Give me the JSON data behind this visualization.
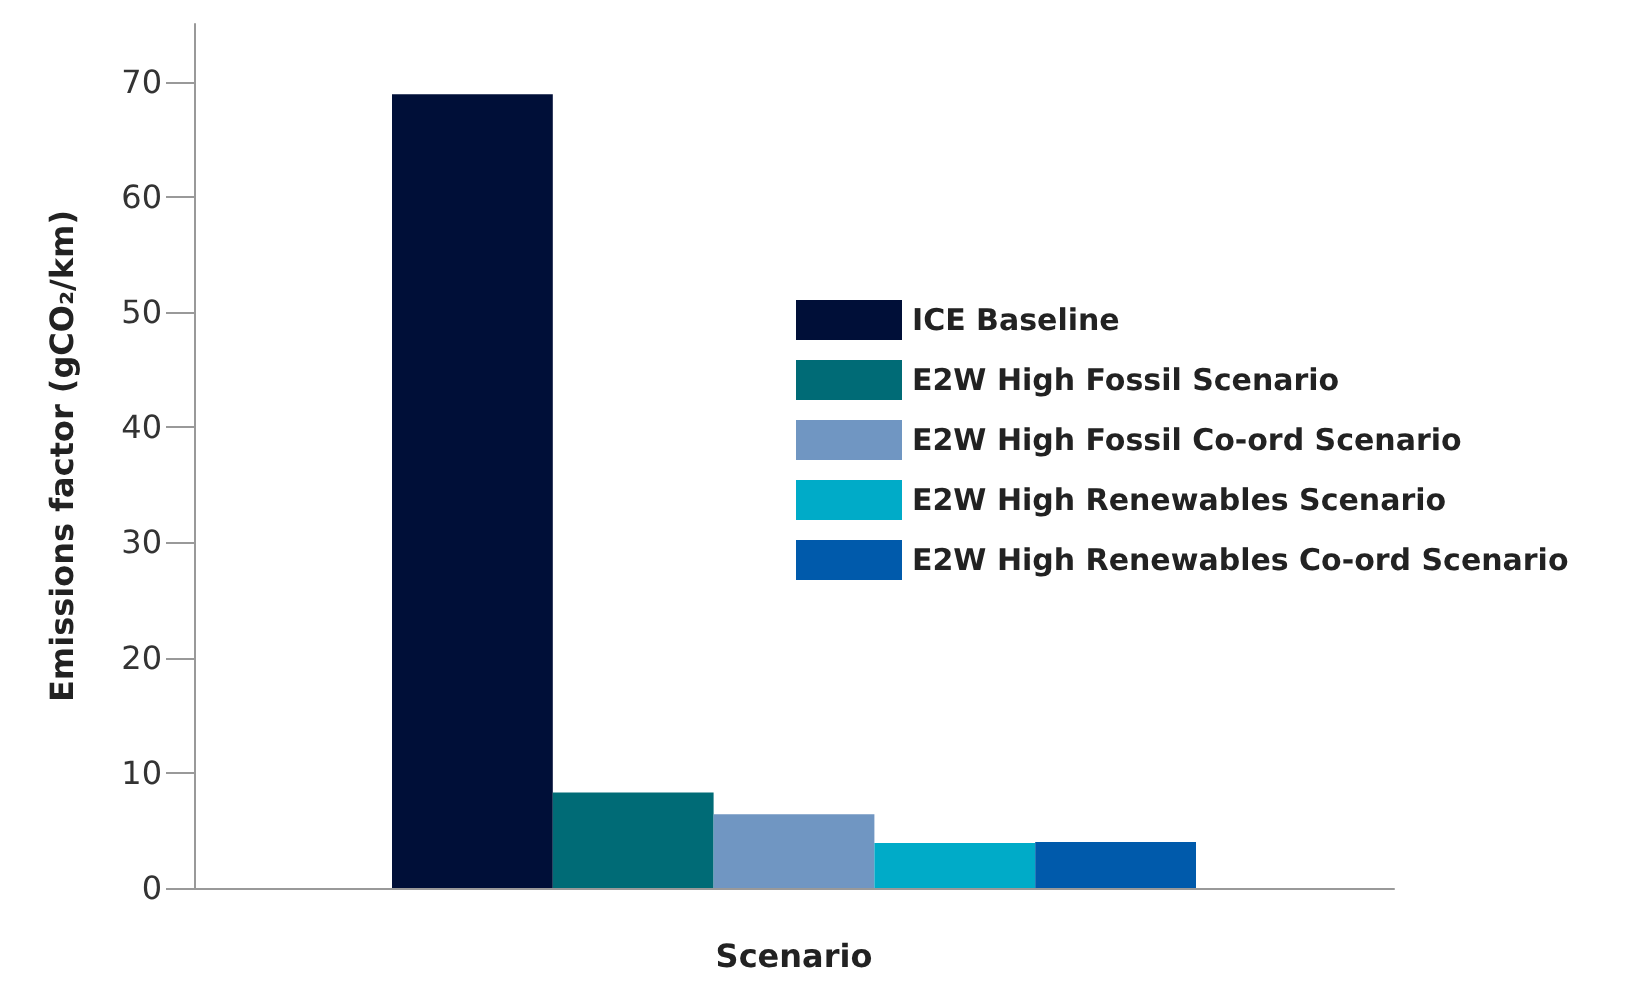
{
  "chart_data": {
    "type": "bar",
    "xlabel": "Scenario",
    "ylabel": "Emissions factor (gCO₂/km)",
    "categories": [
      null
    ],
    "series": [
      {
        "name": "ICE Baseline",
        "color": "#000f38",
        "values": [
          68.9
        ]
      },
      {
        "name": "E2W High Fossil Scenario",
        "color": "#006b76",
        "values": [
          8.3
        ]
      },
      {
        "name": "E2W High Fossil Co-ord Scenario",
        "color": "#7096c2",
        "values": [
          6.4
        ]
      },
      {
        "name": "E2W High Renewables Scenario",
        "color": "#00abc8",
        "values": [
          3.9
        ]
      },
      {
        "name": "E2W High Renewables Co-ord Scenario",
        "color": "#005aab",
        "values": [
          4.0
        ]
      }
    ],
    "ylim": [
      0,
      75
    ],
    "yticks": [
      0,
      10,
      20,
      30,
      40,
      50,
      60,
      70
    ],
    "grid": false,
    "legend": "right"
  }
}
